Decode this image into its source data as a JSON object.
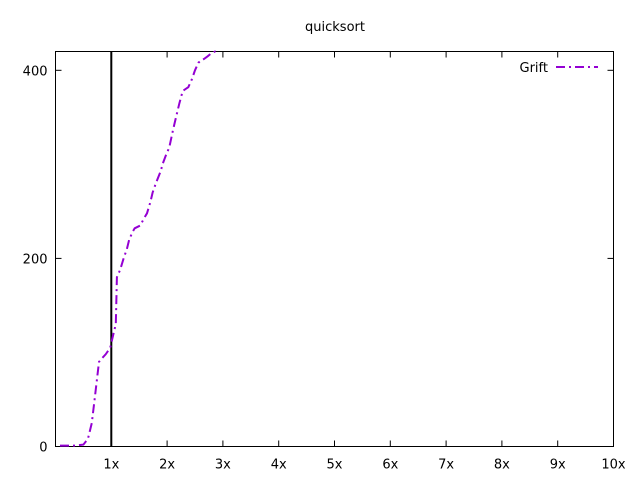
{
  "chart_data": {
    "type": "line",
    "title": "quicksort",
    "xlabel": "",
    "ylabel": "",
    "xlim": [
      0,
      10
    ],
    "ylim": [
      0,
      420
    ],
    "x_ticks": [
      1,
      2,
      3,
      4,
      5,
      6,
      7,
      8,
      9,
      10
    ],
    "x_tick_labels": [
      "1x",
      "2x",
      "3x",
      "4x",
      "5x",
      "6x",
      "7x",
      "8x",
      "9x",
      "10x"
    ],
    "y_ticks": [
      0,
      200,
      400
    ],
    "y_tick_labels": [
      "0",
      "200",
      "400"
    ],
    "grid": false,
    "legend_position": "top-right",
    "reference_line_x": 1,
    "series": [
      {
        "name": "Grift",
        "color": "#9400d3",
        "x": [
          0.08,
          0.2,
          0.35,
          0.5,
          0.58,
          0.65,
          0.7,
          0.74,
          0.78,
          0.82,
          0.9,
          0.98,
          1.04,
          1.08,
          1.1,
          1.16,
          1.22,
          1.28,
          1.32,
          1.38,
          1.42,
          1.52,
          1.58,
          1.64,
          1.7,
          1.74,
          1.8,
          1.88,
          1.93,
          1.98,
          2.04,
          2.1,
          2.16,
          2.22,
          2.28,
          2.33,
          2.38,
          2.44,
          2.5,
          2.56,
          2.6,
          2.66,
          2.73,
          2.79,
          2.86,
          2.92
        ],
        "y": [
          1,
          1,
          1,
          2,
          8,
          25,
          50,
          70,
          90,
          93,
          98,
          105,
          120,
          130,
          180,
          188,
          200,
          210,
          220,
          228,
          232,
          235,
          242,
          248,
          260,
          270,
          280,
          292,
          302,
          310,
          318,
          335,
          350,
          365,
          378,
          380,
          382,
          390,
          400,
          408,
          410,
          412,
          415,
          418,
          420,
          420
        ]
      }
    ]
  }
}
